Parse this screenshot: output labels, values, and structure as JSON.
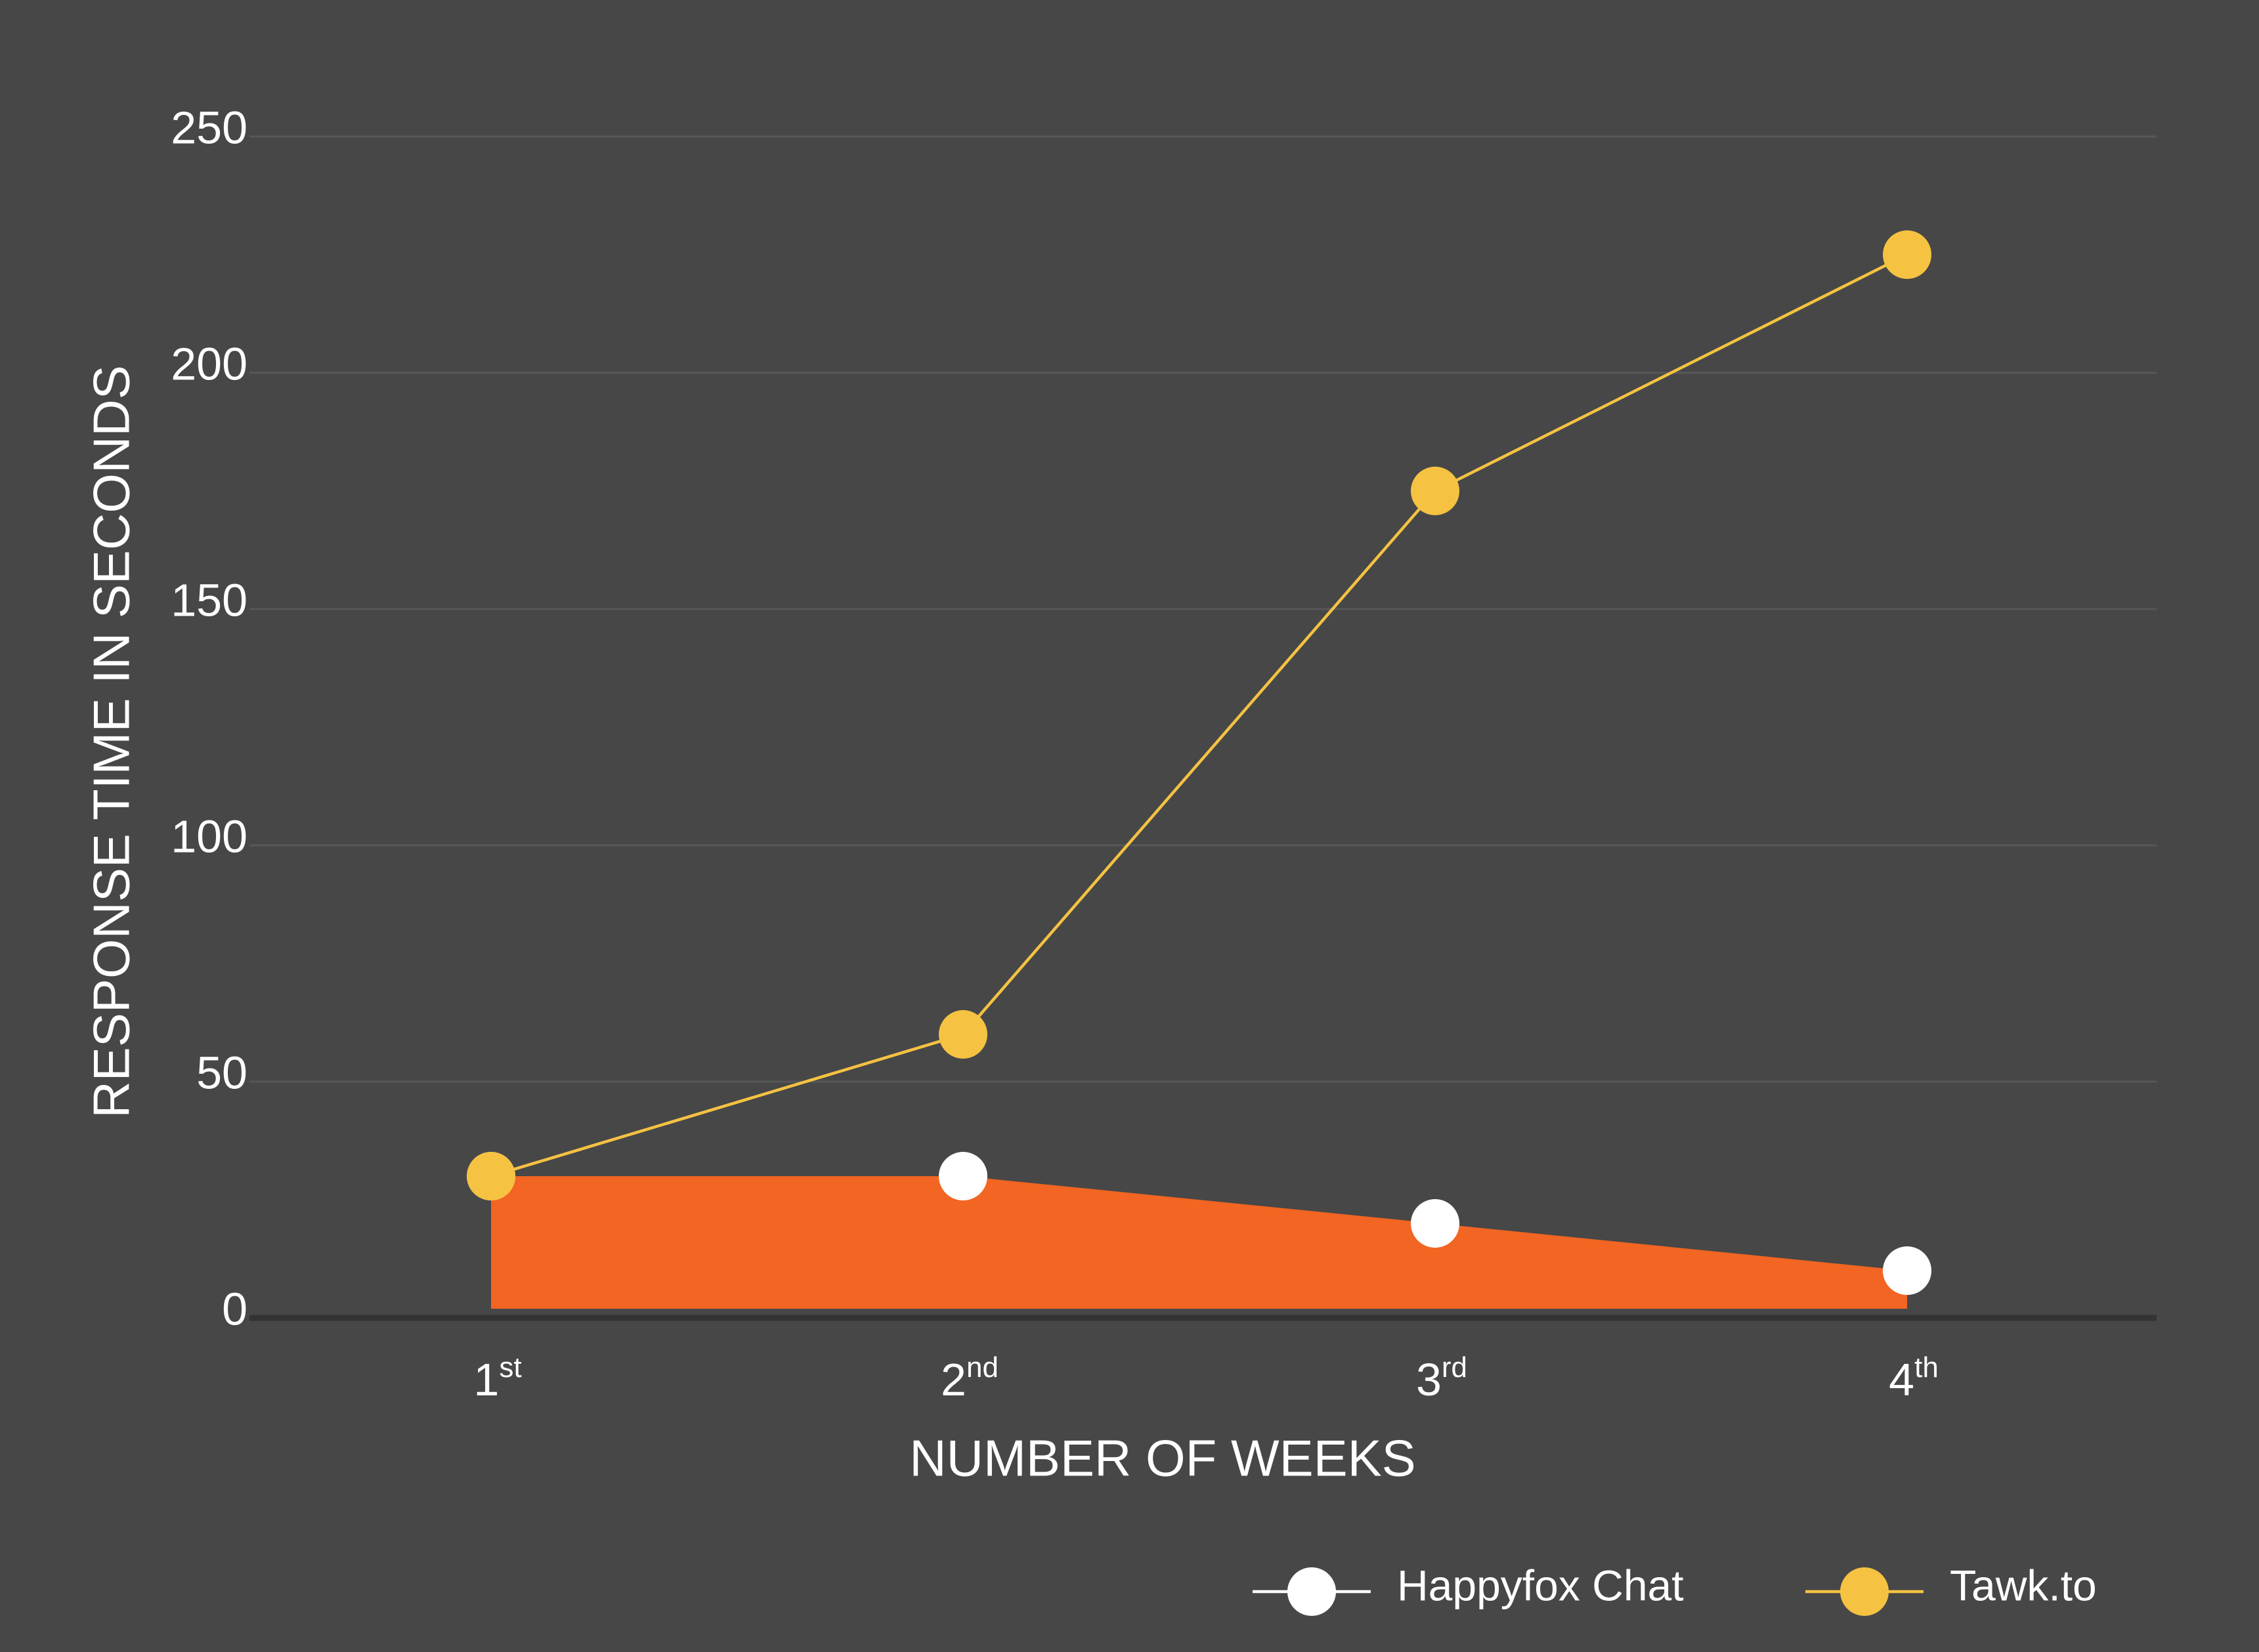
{
  "chart_data": {
    "type": "line",
    "x_label": "NUMBER OF WEEKS",
    "y_label": "RESPONSE TIME IN SECONDS",
    "categories": [
      "1st",
      "2nd",
      "3rd",
      "4th"
    ],
    "series": [
      {
        "name": "Happyfox Chat",
        "color": "#ffffff",
        "area_color": "#f26522",
        "area": true,
        "values": [
          30,
          30,
          20,
          10
        ]
      },
      {
        "name": "Tawk.to",
        "color": "#f5c242",
        "area": false,
        "values": [
          30,
          60,
          175,
          225
        ]
      }
    ],
    "ylim": [
      0,
      250
    ],
    "yticks": [
      0,
      50,
      100,
      150,
      200,
      250
    ],
    "grid": true,
    "legend": "bottom-right"
  }
}
